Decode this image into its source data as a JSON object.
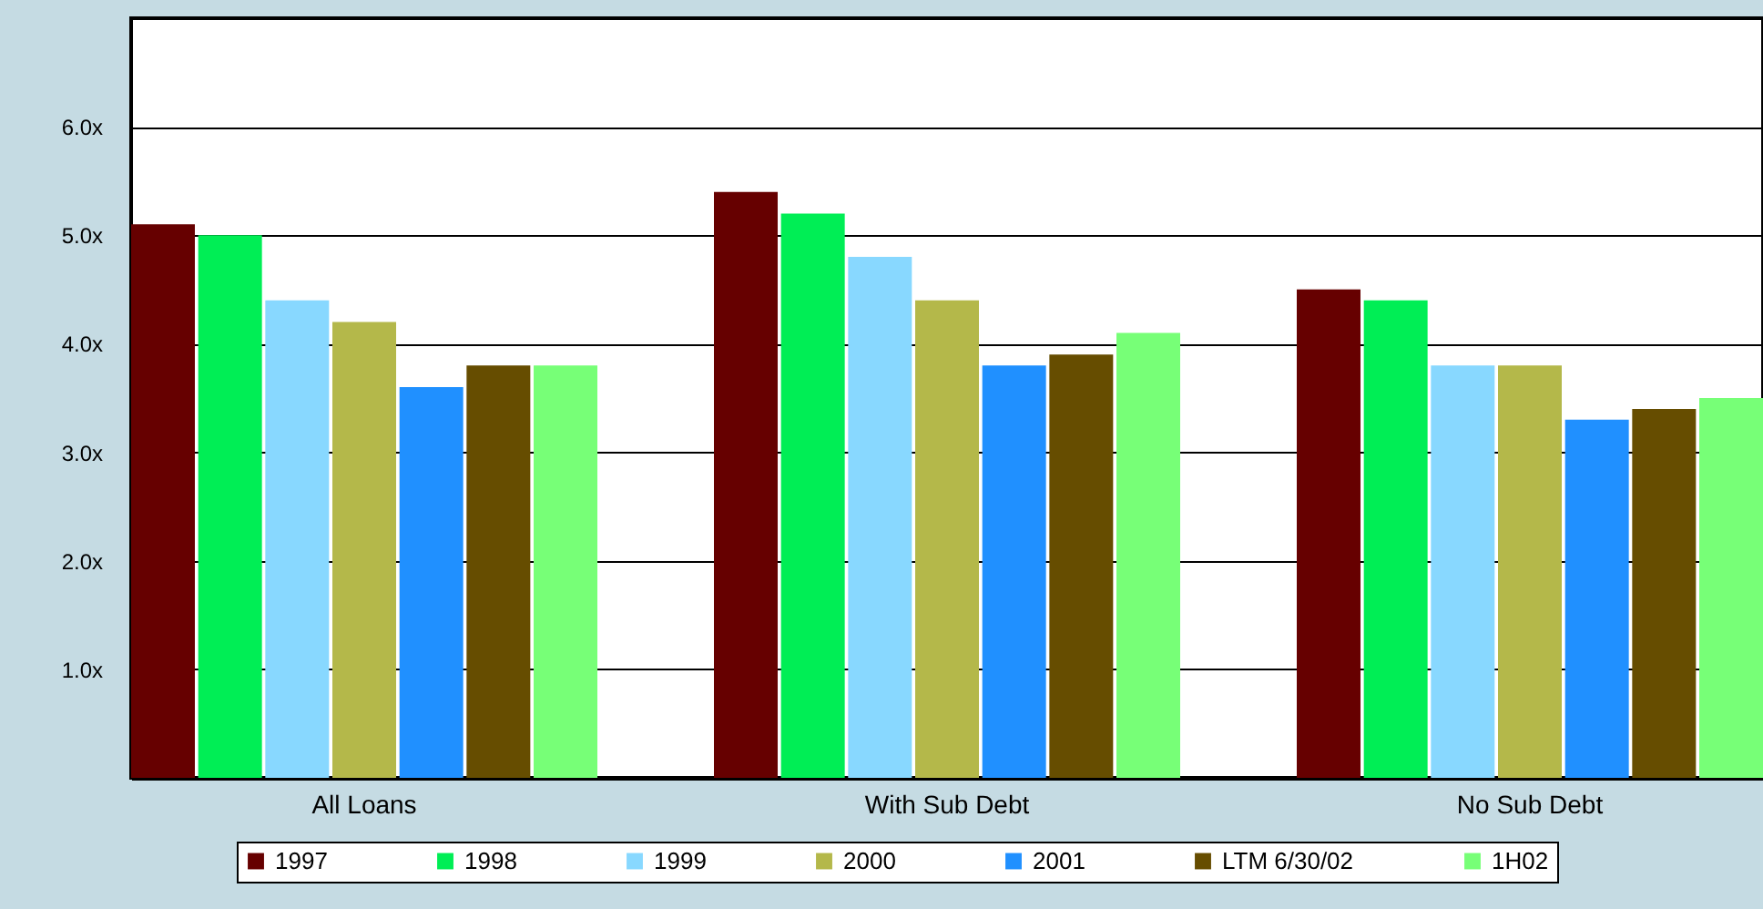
{
  "chart_data": {
    "type": "bar",
    "categories": [
      "All Loans",
      "With Sub Debt",
      "No Sub Debt"
    ],
    "series": [
      {
        "name": "1997",
        "color": "#660000",
        "values": [
          5.1,
          5.4,
          4.5
        ]
      },
      {
        "name": "1998",
        "color": "#00ee55",
        "values": [
          5.0,
          5.2,
          4.4
        ]
      },
      {
        "name": "1999",
        "color": "#88d8ff",
        "values": [
          4.4,
          4.8,
          3.8
        ]
      },
      {
        "name": "2000",
        "color": "#b4b84a",
        "values": [
          4.2,
          4.4,
          3.8
        ]
      },
      {
        "name": "2001",
        "color": "#2090ff",
        "values": [
          3.6,
          3.8,
          3.3
        ]
      },
      {
        "name": "LTM 6/30/02",
        "color": "#664d00",
        "values": [
          3.8,
          3.9,
          3.4
        ]
      },
      {
        "name": "1H02",
        "color": "#77ff77",
        "values": [
          3.8,
          4.1,
          3.5
        ]
      }
    ],
    "ylim": [
      0,
      7
    ],
    "yticks": [
      {
        "value": 1,
        "label": "1.0x"
      },
      {
        "value": 2,
        "label": "2.0x"
      },
      {
        "value": 3,
        "label": "3.0x"
      },
      {
        "value": 4,
        "label": "4.0x"
      },
      {
        "value": 5,
        "label": "5.0x"
      },
      {
        "value": 6,
        "label": "6.0x"
      }
    ],
    "grid": "y",
    "legend": "bottom"
  }
}
